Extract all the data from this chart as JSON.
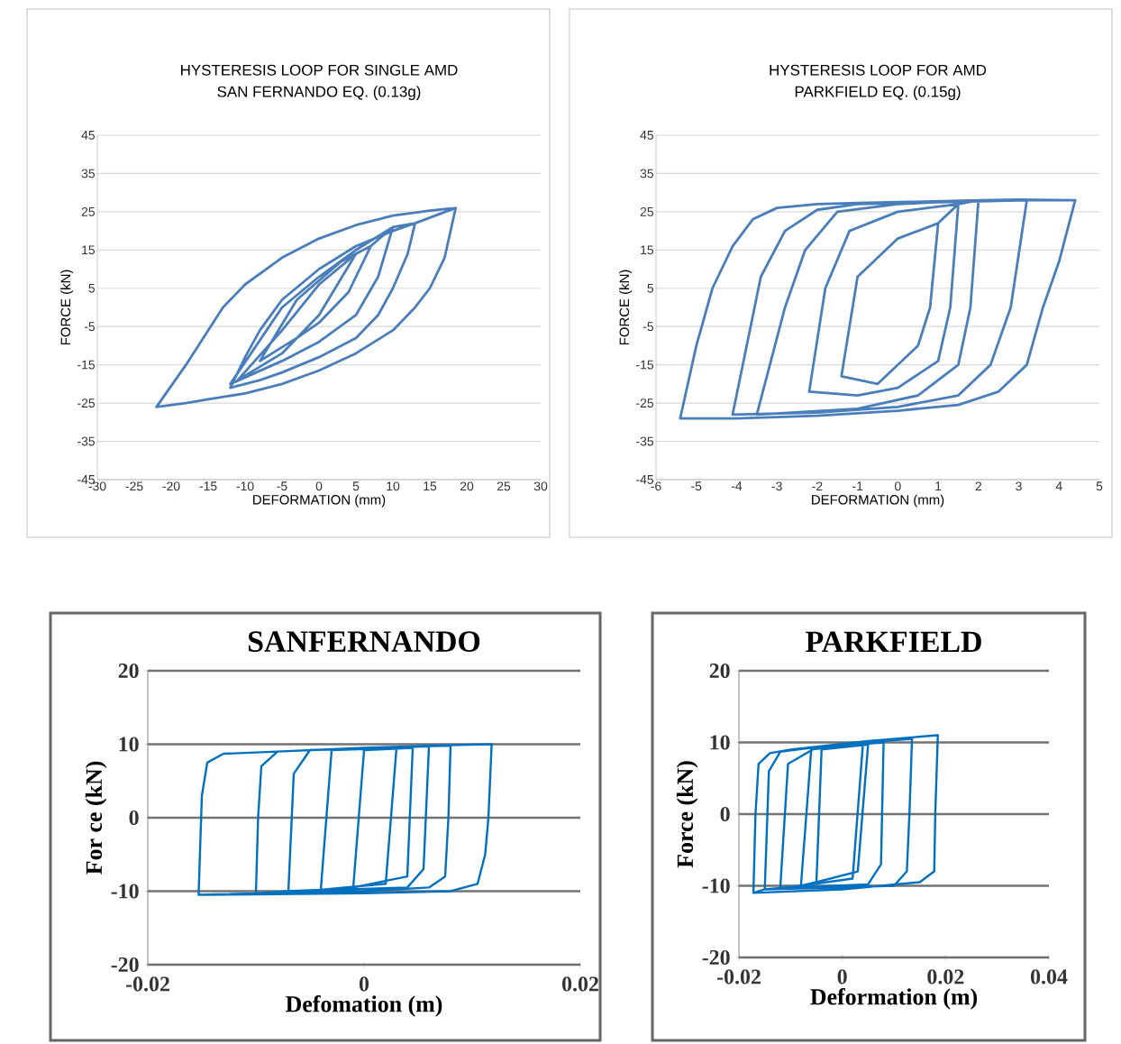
{
  "chart_data": [
    {
      "type": "line",
      "title": "HYSTERESIS LOOP FOR SINGLE AMD",
      "subtitle": "SAN FERNANDO EQ. (0.13g)",
      "xlabel": "DEFORMATION (mm)",
      "ylabel": "FORCE (kN)",
      "color": "#4a7ebb",
      "grid": "y",
      "xlim": [
        -30,
        30
      ],
      "ylim": [
        -45,
        45
      ],
      "xticks": [
        -30,
        -25,
        -20,
        -15,
        -10,
        -5,
        0,
        5,
        10,
        15,
        20,
        25,
        30
      ],
      "yticks": [
        -45,
        -35,
        -25,
        -15,
        -5,
        5,
        15,
        25,
        35,
        45
      ],
      "x": [
        18.5,
        15,
        10,
        5,
        0,
        -5,
        -10,
        -13,
        -15,
        -18,
        -22,
        -18,
        -15,
        -10,
        -5,
        0,
        5,
        10,
        13,
        15,
        17,
        18.5,
        13,
        10,
        5,
        0,
        -5,
        -8,
        -10,
        -12,
        -8,
        -5,
        0,
        5,
        8,
        10,
        12,
        13,
        10,
        5,
        0,
        -5,
        -12,
        -5,
        0,
        5,
        8,
        10,
        7,
        3,
        0,
        -3,
        -8,
        -3,
        0,
        4,
        7,
        5,
        0,
        -5,
        -11,
        -5,
        0,
        5
      ],
      "values": [
        26,
        25.3,
        24,
        21.5,
        18,
        13,
        6,
        0,
        -6,
        -15,
        -26,
        -25,
        -24,
        -22.5,
        -20,
        -16.5,
        -12,
        -6,
        0,
        5,
        13,
        26,
        22,
        20,
        16,
        10,
        2,
        -6,
        -13,
        -21,
        -19,
        -17,
        -13,
        -8,
        -2,
        5,
        14,
        22,
        21,
        15,
        8,
        0,
        -20,
        -14,
        -9,
        -2,
        8,
        21,
        16,
        12,
        7,
        2,
        -14,
        -8,
        -4,
        4,
        16,
        14,
        6,
        -6,
        -19,
        -12,
        -2,
        14
      ]
    },
    {
      "type": "line",
      "title": "HYSTERESIS LOOP FOR AMD",
      "subtitle": "PARKFIELD EQ. (0.15g)",
      "xlabel": "DEFORMATION (mm)",
      "ylabel": "FORCE (kN)",
      "color": "#4a7ebb",
      "grid": "y",
      "xlim": [
        -6,
        5
      ],
      "ylim": [
        -45,
        45
      ],
      "xticks": [
        -6,
        -5,
        -4,
        -3,
        -2,
        -1,
        0,
        1,
        2,
        3,
        4,
        5
      ],
      "yticks": [
        -45,
        -35,
        -25,
        -15,
        -5,
        5,
        15,
        25,
        35,
        45
      ],
      "x": [
        4.4,
        3,
        2,
        0,
        -1,
        -2,
        -3,
        -3.6,
        -4.1,
        -4.6,
        -5,
        -5.4,
        -4,
        -2,
        0,
        1.5,
        2.5,
        3.2,
        3.6,
        4,
        4.4,
        3.2,
        1,
        -1,
        -2,
        -2.8,
        -3.4,
        -4.1,
        -2,
        0,
        1.5,
        2.3,
        2.8,
        3.2,
        2,
        0,
        -1.5,
        -2.3,
        -2.8,
        -3.5,
        -1,
        0.5,
        1.5,
        1.8,
        2,
        1.5,
        0,
        -1.2,
        -1.8,
        -2.2,
        -1,
        0,
        1,
        1.3,
        1.5,
        1,
        0,
        -1,
        -1.4,
        -0.5,
        0.5,
        0.8,
        1
      ],
      "values": [
        28,
        28.2,
        28,
        27.5,
        27.3,
        27,
        26,
        23,
        16,
        5,
        -10,
        -29,
        -29,
        -28.3,
        -27,
        -25.5,
        -22,
        -15,
        0,
        12,
        28,
        28,
        27.5,
        27,
        25.5,
        20,
        8,
        -28,
        -27.5,
        -26,
        -23,
        -15,
        0,
        28,
        28,
        27,
        25,
        15,
        0,
        -28,
        -26.5,
        -23,
        -15,
        0,
        28,
        27,
        25,
        20,
        5,
        -22,
        -23,
        -21,
        -14,
        0,
        27,
        22,
        18,
        8,
        -18,
        -20,
        -10,
        0,
        22
      ]
    },
    {
      "type": "line",
      "title": "SANFERNANDO",
      "xlabel": "Defomation (m)",
      "ylabel": "For ce (kN)",
      "color": "#0070c0",
      "grid": "y",
      "xlim": [
        -0.02,
        0.02
      ],
      "ylim": [
        -20,
        20
      ],
      "xticks": [
        -0.02,
        0,
        0.02
      ],
      "yticks": [
        -20,
        -10,
        0,
        10,
        20
      ],
      "x": [
        -0.0153,
        0,
        0.008,
        0.0105,
        0.0112,
        0.0115,
        0.0118,
        0.006,
        0,
        -0.008,
        -0.013,
        -0.0145,
        -0.015,
        -0.0153,
        -0.01,
        0,
        0.006,
        0.0075,
        0.0078,
        0.008,
        0,
        -0.008,
        -0.0095,
        -0.0098,
        -0.01,
        -0.007,
        0.004,
        0.0055,
        0.006,
        -0.005,
        -0.0065,
        -0.007,
        -0.004,
        0.002,
        0.003,
        -0.003,
        -0.004,
        -0.001,
        0.004,
        0.0045,
        0,
        -0.001
      ],
      "values": [
        -10.5,
        -10.3,
        -10,
        -9,
        -5,
        0,
        10,
        9.8,
        9.5,
        9,
        8.7,
        7.5,
        3,
        -10.5,
        -10.3,
        -10,
        -9.5,
        -8,
        0,
        9.8,
        9.5,
        9,
        7,
        0,
        -10.3,
        -10,
        -9.5,
        -7,
        9.7,
        9.2,
        6,
        -10,
        -9.8,
        -9,
        9.5,
        9.2,
        -9.8,
        -9.5,
        -8,
        9.5,
        9.2,
        -9.5
      ]
    },
    {
      "type": "line",
      "title": "PARKFIELD",
      "xlabel": "Deformation (m)",
      "ylabel": "Force (kN)",
      "color": "#0070c0",
      "grid": "y",
      "xlim": [
        -0.02,
        0.04
      ],
      "ylim": [
        -20,
        20
      ],
      "xticks": [
        -0.02,
        0,
        0.02,
        0.04
      ],
      "yticks": [
        -20,
        -10,
        0,
        10,
        20
      ],
      "x": [
        -0.0172,
        0,
        0.015,
        0.0178,
        0.018,
        0.0185,
        0.005,
        -0.01,
        -0.014,
        -0.0162,
        -0.0168,
        -0.0172,
        -0.015,
        0.01,
        0.0125,
        0.013,
        0.0135,
        0,
        -0.012,
        -0.0142,
        -0.015,
        -0.012,
        0.005,
        0.0075,
        0.008,
        -0.005,
        -0.0105,
        -0.012,
        -0.008,
        0.002,
        0.004,
        -0.006,
        -0.008,
        -0.005,
        0.003,
        0.005,
        -0.004,
        -0.005
      ],
      "values": [
        -11,
        -10.5,
        -9.5,
        -8,
        0,
        11,
        10.2,
        9,
        8.5,
        7,
        0,
        -11,
        -10.5,
        -10,
        -8,
        0,
        10.5,
        9.8,
        8.7,
        6,
        -10.5,
        -10.3,
        -9.8,
        -7,
        10,
        9.3,
        7,
        -10.3,
        -10,
        -9,
        9.8,
        9,
        -10,
        -9.5,
        -8,
        9.7,
        9,
        -9.5
      ]
    }
  ]
}
